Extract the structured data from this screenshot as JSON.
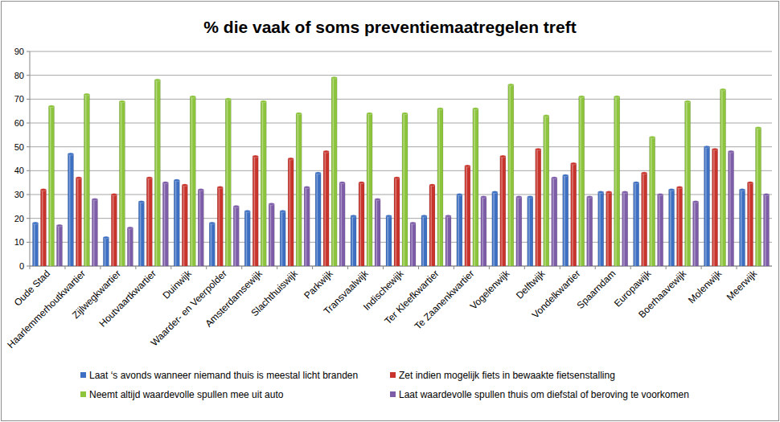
{
  "chart_data": {
    "type": "bar",
    "title": "% die vaak of soms preventiemaatregelen treft",
    "categories": [
      "Oude Stad",
      "Haarlemmerhoutkwartier",
      "Zijlwegkwartier",
      "Houtvaartkwartier",
      "Duinwijk",
      "Waarder- en Veerpolder",
      "Amsterdamsewijk",
      "Slachthuiswijk",
      "Parkwijk",
      "Transvaalwijk",
      "Indischewijk",
      "Ter Kleefkwartier",
      "Te Zaanenkwartier",
      "Vogelenwijk",
      "Delftwijk",
      "Vondelkwartier",
      "Spaarndam",
      "Europawijk",
      "Boerhaavewijk",
      "Molenwijk",
      "Meerwijk"
    ],
    "series": [
      {
        "name": "Laat ‘s avonds wanneer niemand thuis is meestal licht branden",
        "color": "#3d6fc2",
        "values": [
          18,
          47,
          12,
          27,
          36,
          18,
          23,
          23,
          39,
          21,
          21,
          21,
          30,
          31,
          29,
          38,
          31,
          35,
          32,
          50,
          32
        ]
      },
      {
        "name": "Zet indien mogelijk fiets in bewaakte fietsenstalling",
        "color": "#c8342c",
        "values": [
          32,
          37,
          30,
          37,
          34,
          33,
          46,
          45,
          48,
          35,
          37,
          34,
          42,
          46,
          49,
          43,
          31,
          39,
          33,
          49,
          35
        ]
      },
      {
        "name": "Neemt altijd waardevolle spullen mee uit auto",
        "color": "#8cc43c",
        "values": [
          67,
          72,
          69,
          78,
          71,
          70,
          69,
          64,
          79,
          64,
          64,
          66,
          66,
          76,
          63,
          71,
          71,
          54,
          69,
          74,
          58
        ]
      },
      {
        "name": "Laat waardevolle spullen thuis om diefstal of beroving te voorkomen",
        "color": "#7d5ca8",
        "values": [
          17,
          28,
          16,
          35,
          32,
          25,
          26,
          33,
          35,
          28,
          18,
          21,
          29,
          29,
          37,
          29,
          31,
          30,
          27,
          48,
          30
        ]
      }
    ],
    "ylim": [
      0,
      90
    ],
    "yticks": [
      0,
      10,
      20,
      30,
      40,
      50,
      60,
      70,
      80,
      90
    ],
    "grid": true,
    "legend": "bottom"
  }
}
